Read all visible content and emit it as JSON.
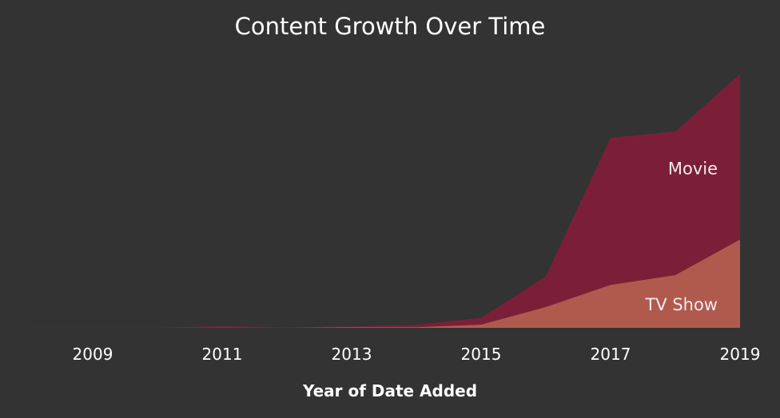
{
  "chart_data": {
    "type": "area",
    "stacked": true,
    "title": "Content Growth Over Time",
    "xlabel": "Year of Date Added",
    "ylabel": "",
    "x": [
      2008,
      2009,
      2010,
      2011,
      2012,
      2013,
      2014,
      2015,
      2016,
      2017,
      2018,
      2019
    ],
    "xticks": [
      "2009",
      "2011",
      "2013",
      "2015",
      "2017",
      "2019"
    ],
    "ylim": [
      0,
      2100
    ],
    "grid": false,
    "legend": "none",
    "series": [
      {
        "name": "TV Show",
        "color": "#b05a4e",
        "values": [
          0,
          0,
          0,
          1,
          0,
          5,
          5,
          26,
          170,
          350,
          430,
          720
        ]
      },
      {
        "name": "Movie",
        "color": "#7b1f38",
        "values": [
          1,
          2,
          1,
          13,
          3,
          6,
          19,
          56,
          250,
          1200,
          1170,
          1350
        ]
      }
    ]
  }
}
